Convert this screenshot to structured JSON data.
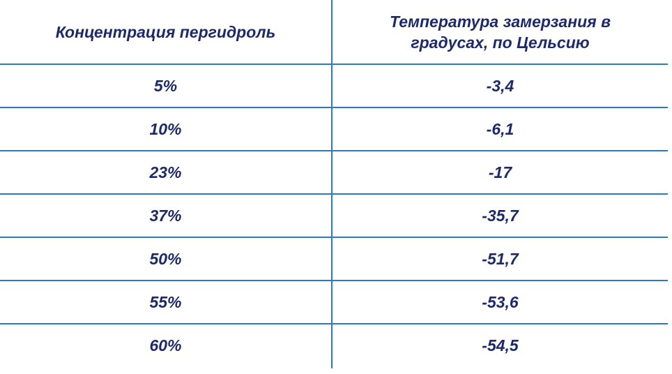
{
  "table": {
    "headers": [
      "Концентрация пергидроль",
      "Температура замерзания в градусах, по Цельсию"
    ],
    "rows": [
      [
        "5%",
        "-3,4"
      ],
      [
        "10%",
        "-6,1"
      ],
      [
        "23%",
        "-17"
      ],
      [
        "37%",
        "-35,7"
      ],
      [
        "50%",
        "-51,7"
      ],
      [
        "55%",
        "-53,6"
      ],
      [
        "60%",
        "-54,5"
      ]
    ]
  }
}
